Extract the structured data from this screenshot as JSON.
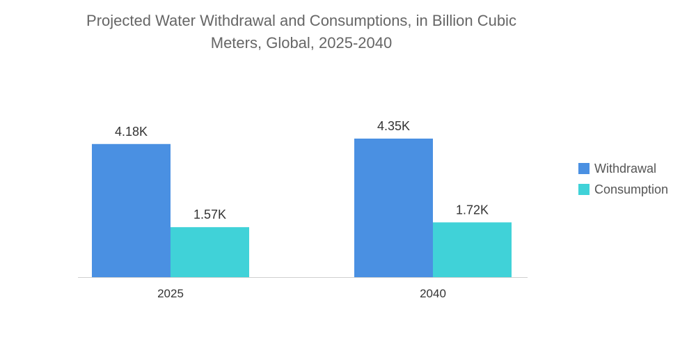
{
  "chart_data": {
    "type": "bar",
    "title_lines": [
      "Projected Water Withdrawal and Consumptions, in Billion Cubic",
      "Meters, Global, 2025-2040"
    ],
    "categories": [
      "2025",
      "2040"
    ],
    "series": [
      {
        "name": "Withdrawal",
        "color": "#4a90e2",
        "values": [
          4180,
          4350
        ],
        "labels": [
          "4.18K",
          "4.35K"
        ]
      },
      {
        "name": "Consumption",
        "color": "#40d2d8",
        "values": [
          1570,
          1720
        ],
        "labels": [
          "1.57K",
          "1.72K"
        ]
      }
    ],
    "ylim": [
      0,
      4350
    ],
    "grid": false,
    "legend_position": "right",
    "axis_line_color": "#d0d0d0"
  }
}
